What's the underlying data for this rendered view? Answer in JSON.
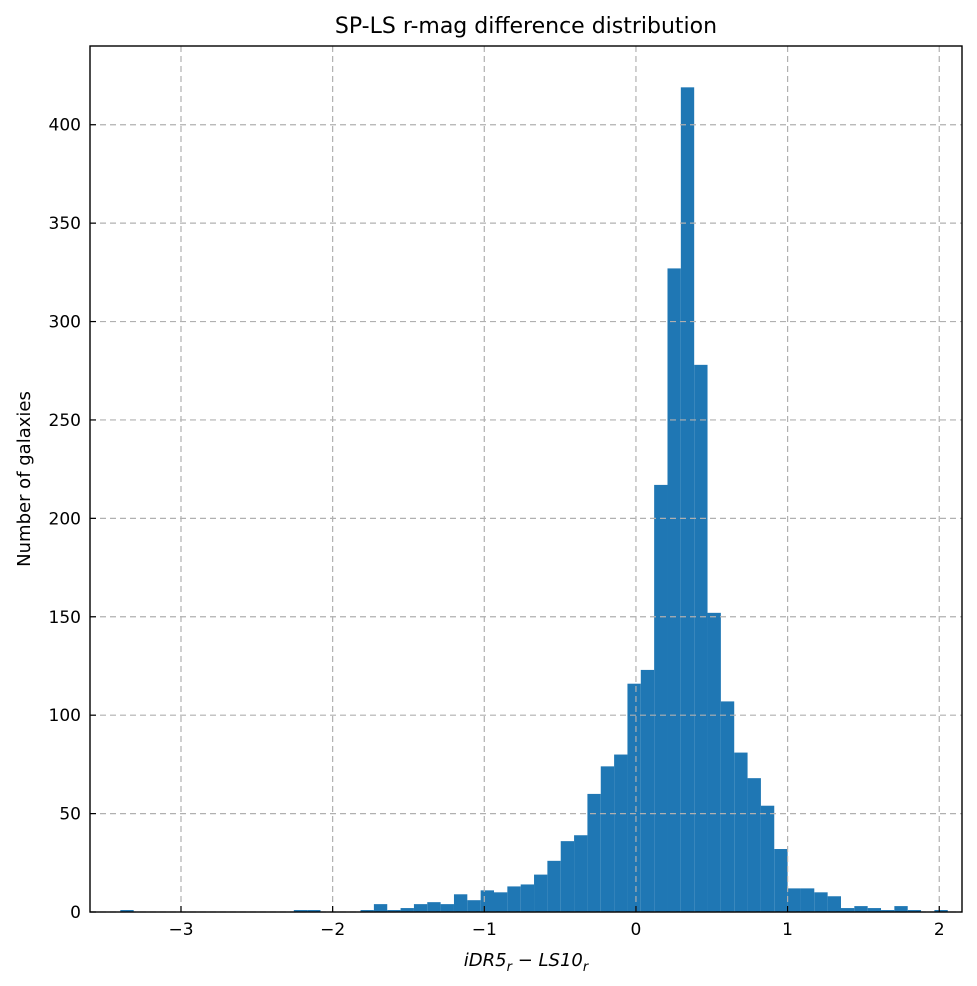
{
  "chart_data": {
    "type": "bar",
    "title": "SP-LS r-mag difference distribution",
    "xlabel_parts": {
      "base1": "iDR5",
      "sub1": "r",
      "minus": " − ",
      "base2": "LS10",
      "sub2": "r"
    },
    "ylabel": "Number of galaxies",
    "xlim": [
      -3.6,
      2.15
    ],
    "ylim": [
      0,
      440
    ],
    "x_ticks": [
      {
        "value": -3,
        "label": "−3"
      },
      {
        "value": -2,
        "label": "−2"
      },
      {
        "value": -1,
        "label": "−1"
      },
      {
        "value": 0,
        "label": "0"
      },
      {
        "value": 1,
        "label": "1"
      },
      {
        "value": 2,
        "label": "2"
      }
    ],
    "y_ticks": [
      {
        "value": 0,
        "label": "0"
      },
      {
        "value": 50,
        "label": "50"
      },
      {
        "value": 100,
        "label": "100"
      },
      {
        "value": 150,
        "label": "150"
      },
      {
        "value": 200,
        "label": "200"
      },
      {
        "value": 250,
        "label": "250"
      },
      {
        "value": 300,
        "label": "300"
      },
      {
        "value": 350,
        "label": "350"
      },
      {
        "value": 400,
        "label": "400"
      }
    ],
    "grid": true,
    "bar_color": "#1f77b4",
    "bin_start": -3.4,
    "bin_width": 0.088,
    "values": [
      1,
      0,
      0,
      0,
      0,
      0,
      0,
      0,
      0,
      0,
      0,
      0,
      0,
      1,
      1,
      0,
      0,
      0,
      1,
      4,
      1,
      2,
      4,
      5,
      4,
      9,
      6,
      11,
      10,
      13,
      14,
      19,
      26,
      36,
      39,
      60,
      74,
      80,
      116,
      123,
      217,
      327,
      419,
      278,
      152,
      107,
      81,
      68,
      54,
      32,
      12,
      12,
      10,
      8,
      2,
      3,
      2,
      1,
      3,
      1,
      0,
      1
    ]
  }
}
